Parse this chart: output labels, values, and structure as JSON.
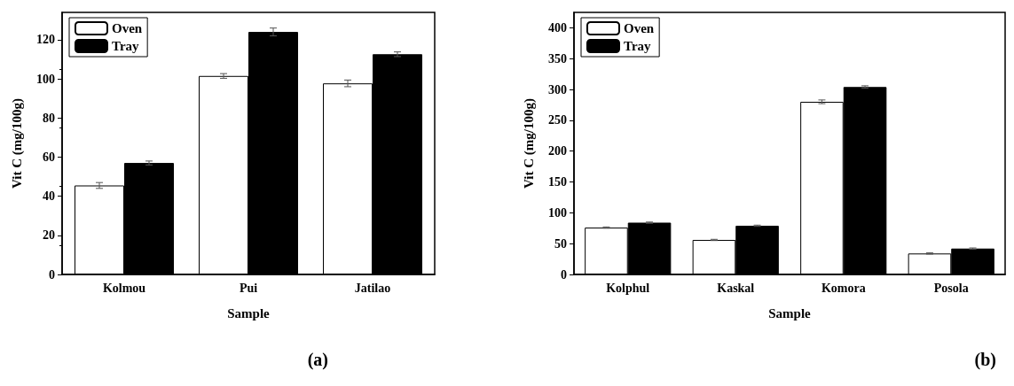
{
  "chart_data": [
    {
      "type": "bar",
      "xlabel": "Sample",
      "ylabel": "Vit C (mg/100g)",
      "categories": [
        "Kolmou",
        "Pui",
        "Jatilao"
      ],
      "series": [
        {
          "name": "Oven",
          "color": "#ffffff",
          "values": [
            45.5,
            101.5,
            97.7
          ],
          "errors": [
            1.5,
            1.2,
            1.7
          ]
        },
        {
          "name": "Tray",
          "color": "#000000",
          "values": [
            57,
            124,
            112.6
          ],
          "errors": [
            1,
            2,
            1.2
          ]
        }
      ],
      "ylim": [
        0,
        134
      ],
      "yticks": [
        0,
        20,
        40,
        60,
        80,
        100,
        120
      ],
      "legend": "top left",
      "grid": false,
      "annotations": [
        "(a)"
      ]
    },
    {
      "type": "bar",
      "xlabel": "Sample",
      "ylabel": "Vit C (mg/100g)",
      "categories": [
        "Kolphul",
        "Kaskal",
        "Komora",
        "Posola"
      ],
      "series": [
        {
          "name": "Oven",
          "color": "#ffffff",
          "values": [
            76,
            56,
            280,
            34
          ],
          "errors": [
            1,
            1,
            3,
            1
          ]
        },
        {
          "name": "Tray",
          "color": "#000000",
          "values": [
            84,
            79,
            304,
            42
          ],
          "errors": [
            1,
            1,
            2,
            1
          ]
        }
      ],
      "ylim": [
        0,
        425
      ],
      "yticks": [
        0,
        50,
        100,
        150,
        200,
        250,
        300,
        350,
        400
      ],
      "legend": "top left",
      "grid": false,
      "annotations": [
        "(b)"
      ]
    }
  ]
}
